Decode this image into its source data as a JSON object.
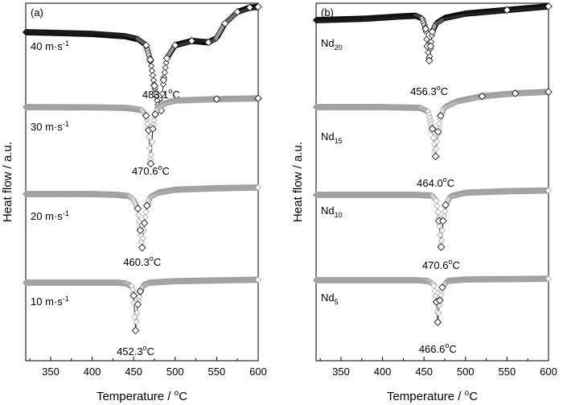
{
  "chart_data": [
    {
      "type": "line",
      "panel_label": "(a)",
      "xlabel": "Temperature / °C",
      "ylabel": "Heat flow / a.u.",
      "xlim": [
        320,
        600
      ],
      "x_ticks": [
        350,
        400,
        450,
        500,
        550,
        600
      ],
      "y_ticks_shown": false,
      "grid": false,
      "legend": "none",
      "marker": "open-diamond",
      "series": [
        {
          "label_main": "40 m·s",
          "label_sup": "-1",
          "label_sub": "",
          "peak_label": "483.1°C",
          "base_color": "#000000",
          "points": [
            [
              320,
              0.0
            ],
            [
              350,
              0.04
            ],
            [
              400,
              0.12
            ],
            [
              440,
              0.28
            ],
            [
              455,
              0.48
            ],
            [
              465,
              0.9
            ],
            [
              470,
              1.9
            ],
            [
              475,
              3.7
            ],
            [
              480,
              5.2
            ],
            [
              483.1,
              5.4
            ],
            [
              486,
              3.3
            ],
            [
              490,
              1.8
            ],
            [
              500,
              0.9
            ],
            [
              520,
              0.6
            ],
            [
              540,
              0.7
            ],
            [
              550,
              0.4
            ],
            [
              560,
              -0.6
            ],
            [
              575,
              -1.4
            ],
            [
              590,
              -1.7
            ],
            [
              600,
              -1.75
            ]
          ]
        },
        {
          "label_main": "30 m·s",
          "label_sup": "-1",
          "label_sub": "",
          "peak_label": "470.6°C",
          "base_color": "#9a9a9a",
          "points": [
            [
              320,
              0.0
            ],
            [
              400,
              0.02
            ],
            [
              440,
              0.05
            ],
            [
              460,
              0.2
            ],
            [
              465,
              0.6
            ],
            [
              468,
              1.6
            ],
            [
              470.6,
              3.9
            ],
            [
              473,
              1.5
            ],
            [
              476,
              0.5
            ],
            [
              480,
              0.0
            ],
            [
              490,
              -0.3
            ],
            [
              500,
              -0.45
            ],
            [
              550,
              -0.55
            ],
            [
              600,
              -0.6
            ]
          ]
        },
        {
          "label_main": "20 m·s",
          "label_sup": "-1",
          "label_sub": "",
          "peak_label": "460.3°C",
          "base_color": "#9a9a9a",
          "points": [
            [
              320,
              0.0
            ],
            [
              400,
              0.0
            ],
            [
              430,
              0.05
            ],
            [
              445,
              0.15
            ],
            [
              450,
              0.4
            ],
            [
              455,
              1.0
            ],
            [
              458,
              2.5
            ],
            [
              460.3,
              3.7
            ],
            [
              463,
              2.0
            ],
            [
              466,
              0.8
            ],
            [
              470,
              0.2
            ],
            [
              480,
              -0.1
            ],
            [
              500,
              -0.3
            ],
            [
              550,
              -0.4
            ],
            [
              600,
              -0.45
            ]
          ]
        },
        {
          "label_main": "10 m·s",
          "label_sup": "-1",
          "label_sub": "",
          "peak_label": "452.3°C",
          "base_color": "#9a9a9a",
          "points": [
            [
              320,
              0.0
            ],
            [
              430,
              0.0
            ],
            [
              440,
              0.05
            ],
            [
              448,
              0.25
            ],
            [
              450,
              0.9
            ],
            [
              452.3,
              3.3
            ],
            [
              455,
              1.5
            ],
            [
              458,
              0.6
            ],
            [
              462,
              0.15
            ],
            [
              470,
              0.0
            ],
            [
              500,
              -0.1
            ],
            [
              600,
              -0.2
            ]
          ]
        }
      ]
    },
    {
      "type": "line",
      "panel_label": "(b)",
      "xlabel": "Temperature / °C",
      "ylabel": "Heat flow / a.u.",
      "xlim": [
        320,
        600
      ],
      "x_ticks": [
        350,
        400,
        450,
        500,
        550,
        600
      ],
      "y_ticks_shown": false,
      "grid": false,
      "legend": "none",
      "marker": "open-diamond",
      "series": [
        {
          "label_main": "Nd",
          "label_sup": "",
          "label_sub": "20",
          "peak_label": "456.3°C",
          "base_color": "#000000",
          "points": [
            [
              320,
              0.0
            ],
            [
              380,
              -0.1
            ],
            [
              420,
              -0.25
            ],
            [
              440,
              -0.3
            ],
            [
              448,
              -0.1
            ],
            [
              452,
              0.6
            ],
            [
              454,
              1.8
            ],
            [
              456.3,
              2.8
            ],
            [
              458,
              1.8
            ],
            [
              460,
              0.8
            ],
            [
              465,
              0.2
            ],
            [
              475,
              -0.15
            ],
            [
              500,
              -0.45
            ],
            [
              550,
              -0.7
            ],
            [
              600,
              -0.95
            ]
          ]
        },
        {
          "label_main": "Nd",
          "label_sup": "",
          "label_sub": "15",
          "peak_label": "464.0°C",
          "base_color": "#9a9a9a",
          "points": [
            [
              320,
              0.0
            ],
            [
              400,
              0.0
            ],
            [
              445,
              0.05
            ],
            [
              455,
              0.3
            ],
            [
              460,
              1.5
            ],
            [
              464,
              3.4
            ],
            [
              467,
              1.7
            ],
            [
              470,
              0.6
            ],
            [
              475,
              0.0
            ],
            [
              490,
              -0.4
            ],
            [
              520,
              -0.75
            ],
            [
              560,
              -0.95
            ],
            [
              600,
              -1.05
            ]
          ]
        },
        {
          "label_main": "Nd",
          "label_sup": "",
          "label_sub": "10",
          "peak_label": "470.6°C",
          "base_color": "#9a9a9a",
          "points": [
            [
              320,
              0.0
            ],
            [
              440,
              0.0
            ],
            [
              460,
              0.05
            ],
            [
              465,
              0.4
            ],
            [
              468,
              1.8
            ],
            [
              470.6,
              3.6
            ],
            [
              473,
              1.8
            ],
            [
              476,
              0.7
            ],
            [
              482,
              0.1
            ],
            [
              500,
              -0.15
            ],
            [
              550,
              -0.25
            ],
            [
              600,
              -0.3
            ]
          ]
        },
        {
          "label_main": "Nd",
          "label_sup": "",
          "label_sub": "5",
          "peak_label": "466.6°C",
          "base_color": "#9a9a9a",
          "points": [
            [
              320,
              0.0
            ],
            [
              440,
              0.0
            ],
            [
              455,
              0.05
            ],
            [
              462,
              0.3
            ],
            [
              465,
              1.5
            ],
            [
              466.6,
              2.9
            ],
            [
              469,
              1.4
            ],
            [
              472,
              0.5
            ],
            [
              478,
              0.05
            ],
            [
              500,
              -0.05
            ],
            [
              600,
              -0.1
            ]
          ]
        }
      ]
    }
  ]
}
